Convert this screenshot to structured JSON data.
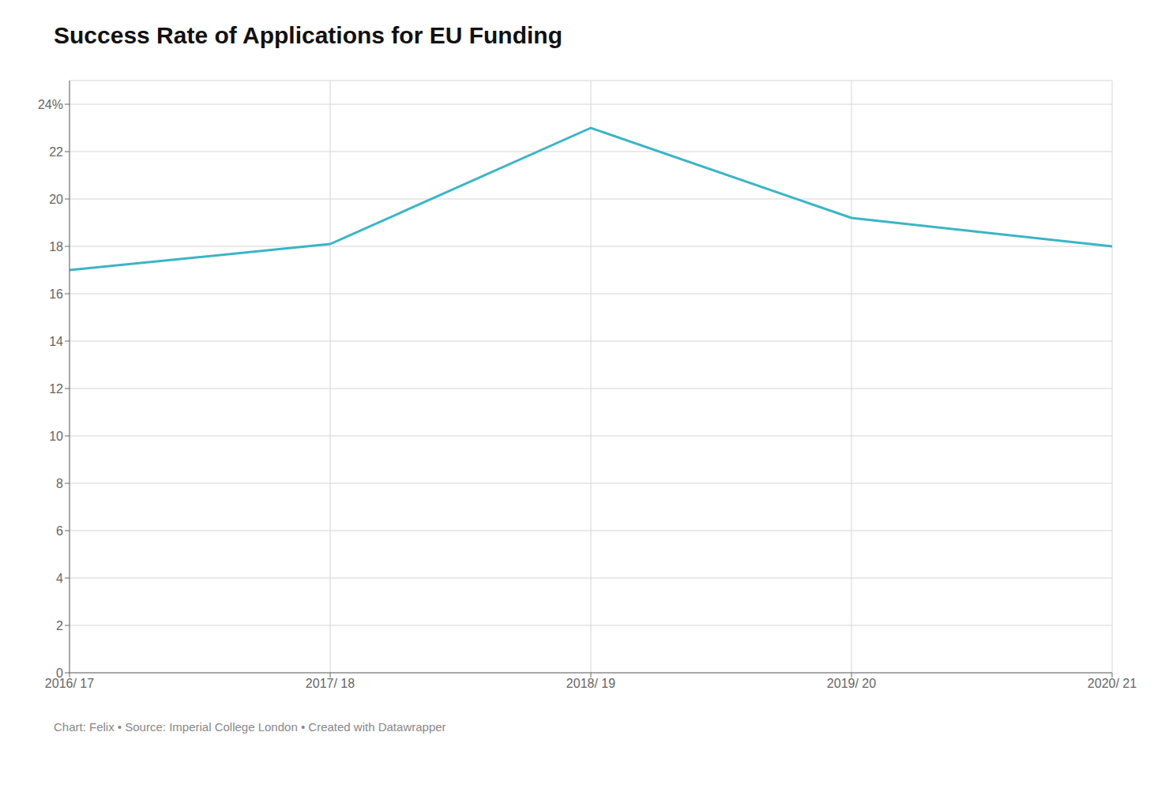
{
  "chart_data": {
    "type": "line",
    "title": "Success Rate of Applications for EU Funding",
    "caption": "Chart: Felix • Source: Imperial College London • Created with Datawrapper",
    "categories": [
      "2016/ 17",
      "2017/ 18",
      "2018/ 19",
      "2019/ 20",
      "2020/ 21"
    ],
    "values": [
      17.0,
      18.1,
      23.0,
      19.2,
      18.0
    ],
    "color": "#3ab5c6",
    "ylim": [
      0,
      25
    ],
    "yticks": [
      0,
      2,
      4,
      6,
      8,
      10,
      12,
      14,
      16,
      18,
      20,
      22,
      {
        "value": 24,
        "label": "24%"
      }
    ],
    "grid": true
  }
}
